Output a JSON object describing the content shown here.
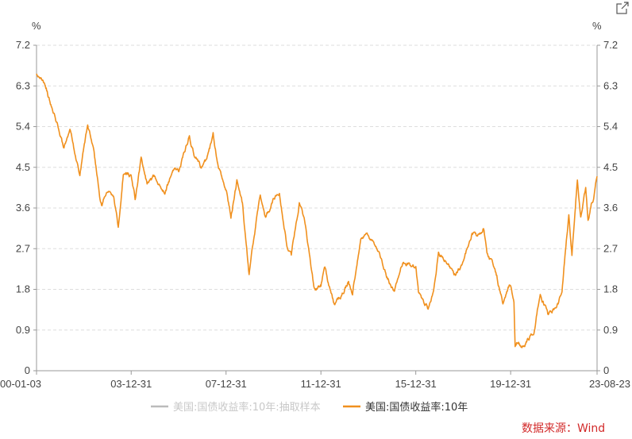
{
  "chart_data": {
    "type": "line",
    "unit_left": "%",
    "unit_right": "%",
    "y_ticks": [
      "0",
      "0.9",
      "1.8",
      "2.7",
      "3.6",
      "4.5",
      "5.4",
      "6.3",
      "7.2"
    ],
    "ylim": [
      0,
      7.2
    ],
    "x_ticks": [
      "00-01-03",
      "03-12-31",
      "07-12-31",
      "11-12-31",
      "15-12-31",
      "19-12-31",
      "23-08-23"
    ],
    "x_range": [
      "2000-01-03",
      "2023-08-23"
    ],
    "grid": "horizontal dashed",
    "legend_position": "bottom",
    "series": [
      {
        "name": "美国:国债收益率:10年:抽取样本",
        "color": "#bbbbbb",
        "points": []
      },
      {
        "name": "美国:国债收益率:10年",
        "color": "#f0901e",
        "points": [
          [
            "2000-01-03",
            6.6
          ],
          [
            "2000-03-01",
            6.5
          ],
          [
            "2000-06-01",
            6.2
          ],
          [
            "2000-09-01",
            5.8
          ],
          [
            "2000-12-01",
            5.4
          ],
          [
            "2001-03-01",
            4.9
          ],
          [
            "2001-06-01",
            5.3
          ],
          [
            "2001-09-01",
            4.7
          ],
          [
            "2001-11-01",
            4.3
          ],
          [
            "2002-01-01",
            5.0
          ],
          [
            "2002-03-01",
            5.4
          ],
          [
            "2002-06-01",
            4.9
          ],
          [
            "2002-09-01",
            3.9
          ],
          [
            "2002-10-01",
            3.7
          ],
          [
            "2003-01-01",
            4.0
          ],
          [
            "2003-04-01",
            3.9
          ],
          [
            "2003-06-15",
            3.15
          ],
          [
            "2003-09-01",
            4.4
          ],
          [
            "2003-12-31",
            4.3
          ],
          [
            "2004-03-01",
            3.8
          ],
          [
            "2004-06-01",
            4.7
          ],
          [
            "2004-09-01",
            4.1
          ],
          [
            "2005-01-01",
            4.3
          ],
          [
            "2005-06-01",
            4.0
          ],
          [
            "2005-11-01",
            4.5
          ],
          [
            "2006-01-01",
            4.4
          ],
          [
            "2006-06-15",
            5.2
          ],
          [
            "2006-09-01",
            4.8
          ],
          [
            "2006-12-01",
            4.5
          ],
          [
            "2007-03-01",
            4.6
          ],
          [
            "2007-06-15",
            5.2
          ],
          [
            "2007-09-01",
            4.5
          ],
          [
            "2007-12-31",
            4.0
          ],
          [
            "2008-03-15",
            3.4
          ],
          [
            "2008-06-15",
            4.2
          ],
          [
            "2008-09-15",
            3.6
          ],
          [
            "2008-12-20",
            2.1
          ],
          [
            "2009-03-01",
            2.9
          ],
          [
            "2009-06-10",
            3.9
          ],
          [
            "2009-09-01",
            3.4
          ],
          [
            "2010-01-01",
            3.8
          ],
          [
            "2010-04-01",
            4.0
          ],
          [
            "2010-08-01",
            2.7
          ],
          [
            "2010-10-01",
            2.5
          ],
          [
            "2011-02-01",
            3.7
          ],
          [
            "2011-05-01",
            3.2
          ],
          [
            "2011-09-20",
            1.8
          ],
          [
            "2011-12-31",
            1.9
          ],
          [
            "2012-03-01",
            2.3
          ],
          [
            "2012-07-25",
            1.45
          ],
          [
            "2012-12-01",
            1.7
          ],
          [
            "2013-03-01",
            2.0
          ],
          [
            "2013-05-01",
            1.65
          ],
          [
            "2013-09-05",
            3.0
          ],
          [
            "2013-12-31",
            3.0
          ],
          [
            "2014-06-01",
            2.6
          ],
          [
            "2014-10-15",
            2.1
          ],
          [
            "2015-01-30",
            1.7
          ],
          [
            "2015-06-10",
            2.4
          ],
          [
            "2015-12-31",
            2.3
          ],
          [
            "2016-02-10",
            1.7
          ],
          [
            "2016-07-08",
            1.37
          ],
          [
            "2016-10-01",
            1.7
          ],
          [
            "2016-12-15",
            2.6
          ],
          [
            "2017-03-01",
            2.5
          ],
          [
            "2017-09-01",
            2.1
          ],
          [
            "2017-12-31",
            2.4
          ],
          [
            "2018-05-15",
            3.1
          ],
          [
            "2018-08-01",
            2.9
          ],
          [
            "2018-11-08",
            3.2
          ],
          [
            "2019-01-01",
            2.7
          ],
          [
            "2019-06-01",
            2.1
          ],
          [
            "2019-09-03",
            1.47
          ],
          [
            "2019-12-31",
            1.9
          ],
          [
            "2020-02-20",
            1.5
          ],
          [
            "2020-03-09",
            0.55
          ],
          [
            "2020-05-01",
            0.65
          ],
          [
            "2020-08-04",
            0.52
          ],
          [
            "2020-12-31",
            0.92
          ],
          [
            "2021-03-31",
            1.74
          ],
          [
            "2021-08-01",
            1.2
          ],
          [
            "2021-12-31",
            1.5
          ],
          [
            "2022-03-01",
            1.8
          ],
          [
            "2022-06-14",
            3.48
          ],
          [
            "2022-08-01",
            2.6
          ],
          [
            "2022-10-24",
            4.25
          ],
          [
            "2022-12-15",
            3.4
          ],
          [
            "2023-03-01",
            4.0
          ],
          [
            "2023-04-06",
            3.3
          ],
          [
            "2023-06-01",
            3.7
          ],
          [
            "2023-07-01",
            3.8
          ],
          [
            "2023-08-23",
            4.3
          ]
        ]
      }
    ]
  },
  "source_text": "数据来源：Wind"
}
